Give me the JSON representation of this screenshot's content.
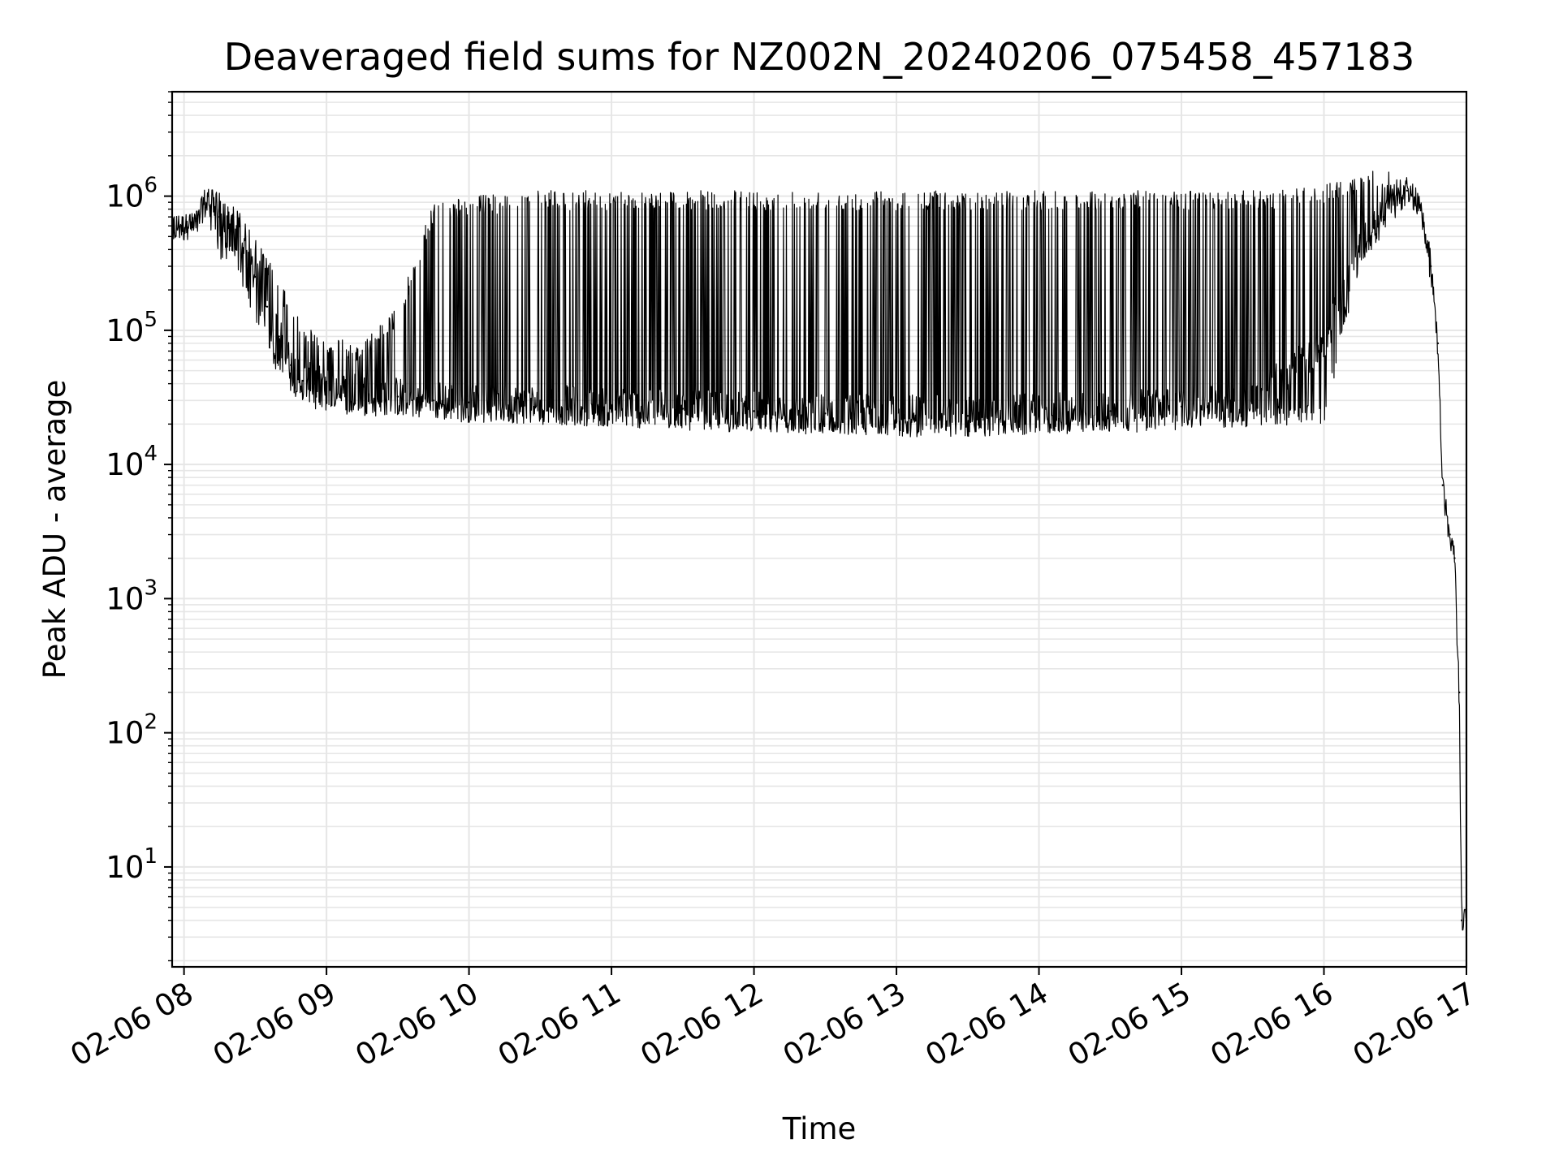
{
  "chart_data": {
    "type": "line",
    "title": "Deaveraged field sums for NZ002N_20240206_075458_457183",
    "xlabel": "Time",
    "ylabel": "Peak ADU - average",
    "yscale": "log",
    "ylim": [
      1.8,
      6000000
    ],
    "xlim": [
      "2024-02-06 07:55",
      "2024-02-06 17:00"
    ],
    "grid": true,
    "legend": "none",
    "line_color": "#000000",
    "x_ticks": [
      "02-06 08",
      "02-06 09",
      "02-06 10",
      "02-06 11",
      "02-06 12",
      "02-06 13",
      "02-06 14",
      "02-06 15",
      "02-06 16",
      "02-06 17"
    ],
    "y_ticks": [
      {
        "base": "10",
        "exp": "1",
        "value": 10
      },
      {
        "base": "10",
        "exp": "2",
        "value": 100
      },
      {
        "base": "10",
        "exp": "3",
        "value": 1000
      },
      {
        "base": "10",
        "exp": "4",
        "value": 10000
      },
      {
        "base": "10",
        "exp": "5",
        "value": 100000
      },
      {
        "base": "10",
        "exp": "6",
        "value": 1000000
      }
    ],
    "series": [
      {
        "x": [
          "2024-02-06 07:55",
          "2024-02-06 08:05",
          "2024-02-06 08:10",
          "2024-02-06 08:15",
          "2024-02-06 08:20",
          "2024-02-06 08:25",
          "2024-02-06 08:30",
          "2024-02-06 08:35",
          "2024-02-06 08:40",
          "2024-02-06 08:45",
          "2024-02-06 08:50",
          "2024-02-06 08:55",
          "2024-02-06 09:00",
          "2024-02-06 09:15",
          "2024-02-06 09:30",
          "2024-02-06 09:45",
          "2024-02-06 10:00",
          "2024-02-06 10:30",
          "2024-02-06 11:00",
          "2024-02-06 11:30",
          "2024-02-06 12:00",
          "2024-02-06 12:30",
          "2024-02-06 13:00",
          "2024-02-06 13:30",
          "2024-02-06 14:00",
          "2024-02-06 14:30",
          "2024-02-06 15:00",
          "2024-02-06 15:30",
          "2024-02-06 16:00",
          "2024-02-06 16:15",
          "2024-02-06 16:25",
          "2024-02-06 16:35",
          "2024-02-06 16:40",
          "2024-02-06 16:45",
          "2024-02-06 16:48",
          "2024-02-06 16:50",
          "2024-02-06 16:53",
          "2024-02-06 16:55",
          "2024-02-06 16:57",
          "2024-02-06 16:58",
          "2024-02-06 17:00"
        ],
        "values": [
          600000,
          650000,
          1000000,
          700000,
          550000,
          400000,
          250000,
          150000,
          90000,
          55000,
          42000,
          40000,
          38000,
          34000,
          32000,
          30000,
          29000,
          28000,
          27000,
          26000,
          25000,
          24000,
          24000,
          23000,
          24000,
          25000,
          27000,
          30000,
          80000,
          400000,
          700000,
          1100000,
          900000,
          300000,
          80000,
          7000,
          3000,
          2000,
          200,
          4,
          4
        ],
        "upper_envelope": [
          650000,
          700000,
          1200000,
          1100000,
          900000,
          700000,
          500000,
          350000,
          250000,
          150000,
          120000,
          100000,
          90000,
          80000,
          150000,
          900000,
          1000000,
          1100000,
          1100000,
          1100000,
          1100000,
          1100000,
          1100000,
          1100000,
          1100000,
          1100000,
          1100000,
          1100000,
          1200000,
          1500000,
          1600000,
          1300000,
          1000000,
          400000,
          90000,
          7500,
          3300,
          2200,
          250,
          4.5,
          4.5
        ],
        "lower_envelope": [
          500000,
          550000,
          700000,
          300000,
          300000,
          200000,
          120000,
          70000,
          45000,
          35000,
          28000,
          25000,
          24000,
          23000,
          22000,
          22000,
          21000,
          20000,
          19000,
          18000,
          17000,
          16000,
          16000,
          16000,
          16500,
          17000,
          18000,
          19000,
          20000,
          300000,
          600000,
          1000000,
          800000,
          250000,
          70000,
          5000,
          2200,
          1800,
          150,
          3.8,
          3.8
        ]
      }
    ]
  }
}
